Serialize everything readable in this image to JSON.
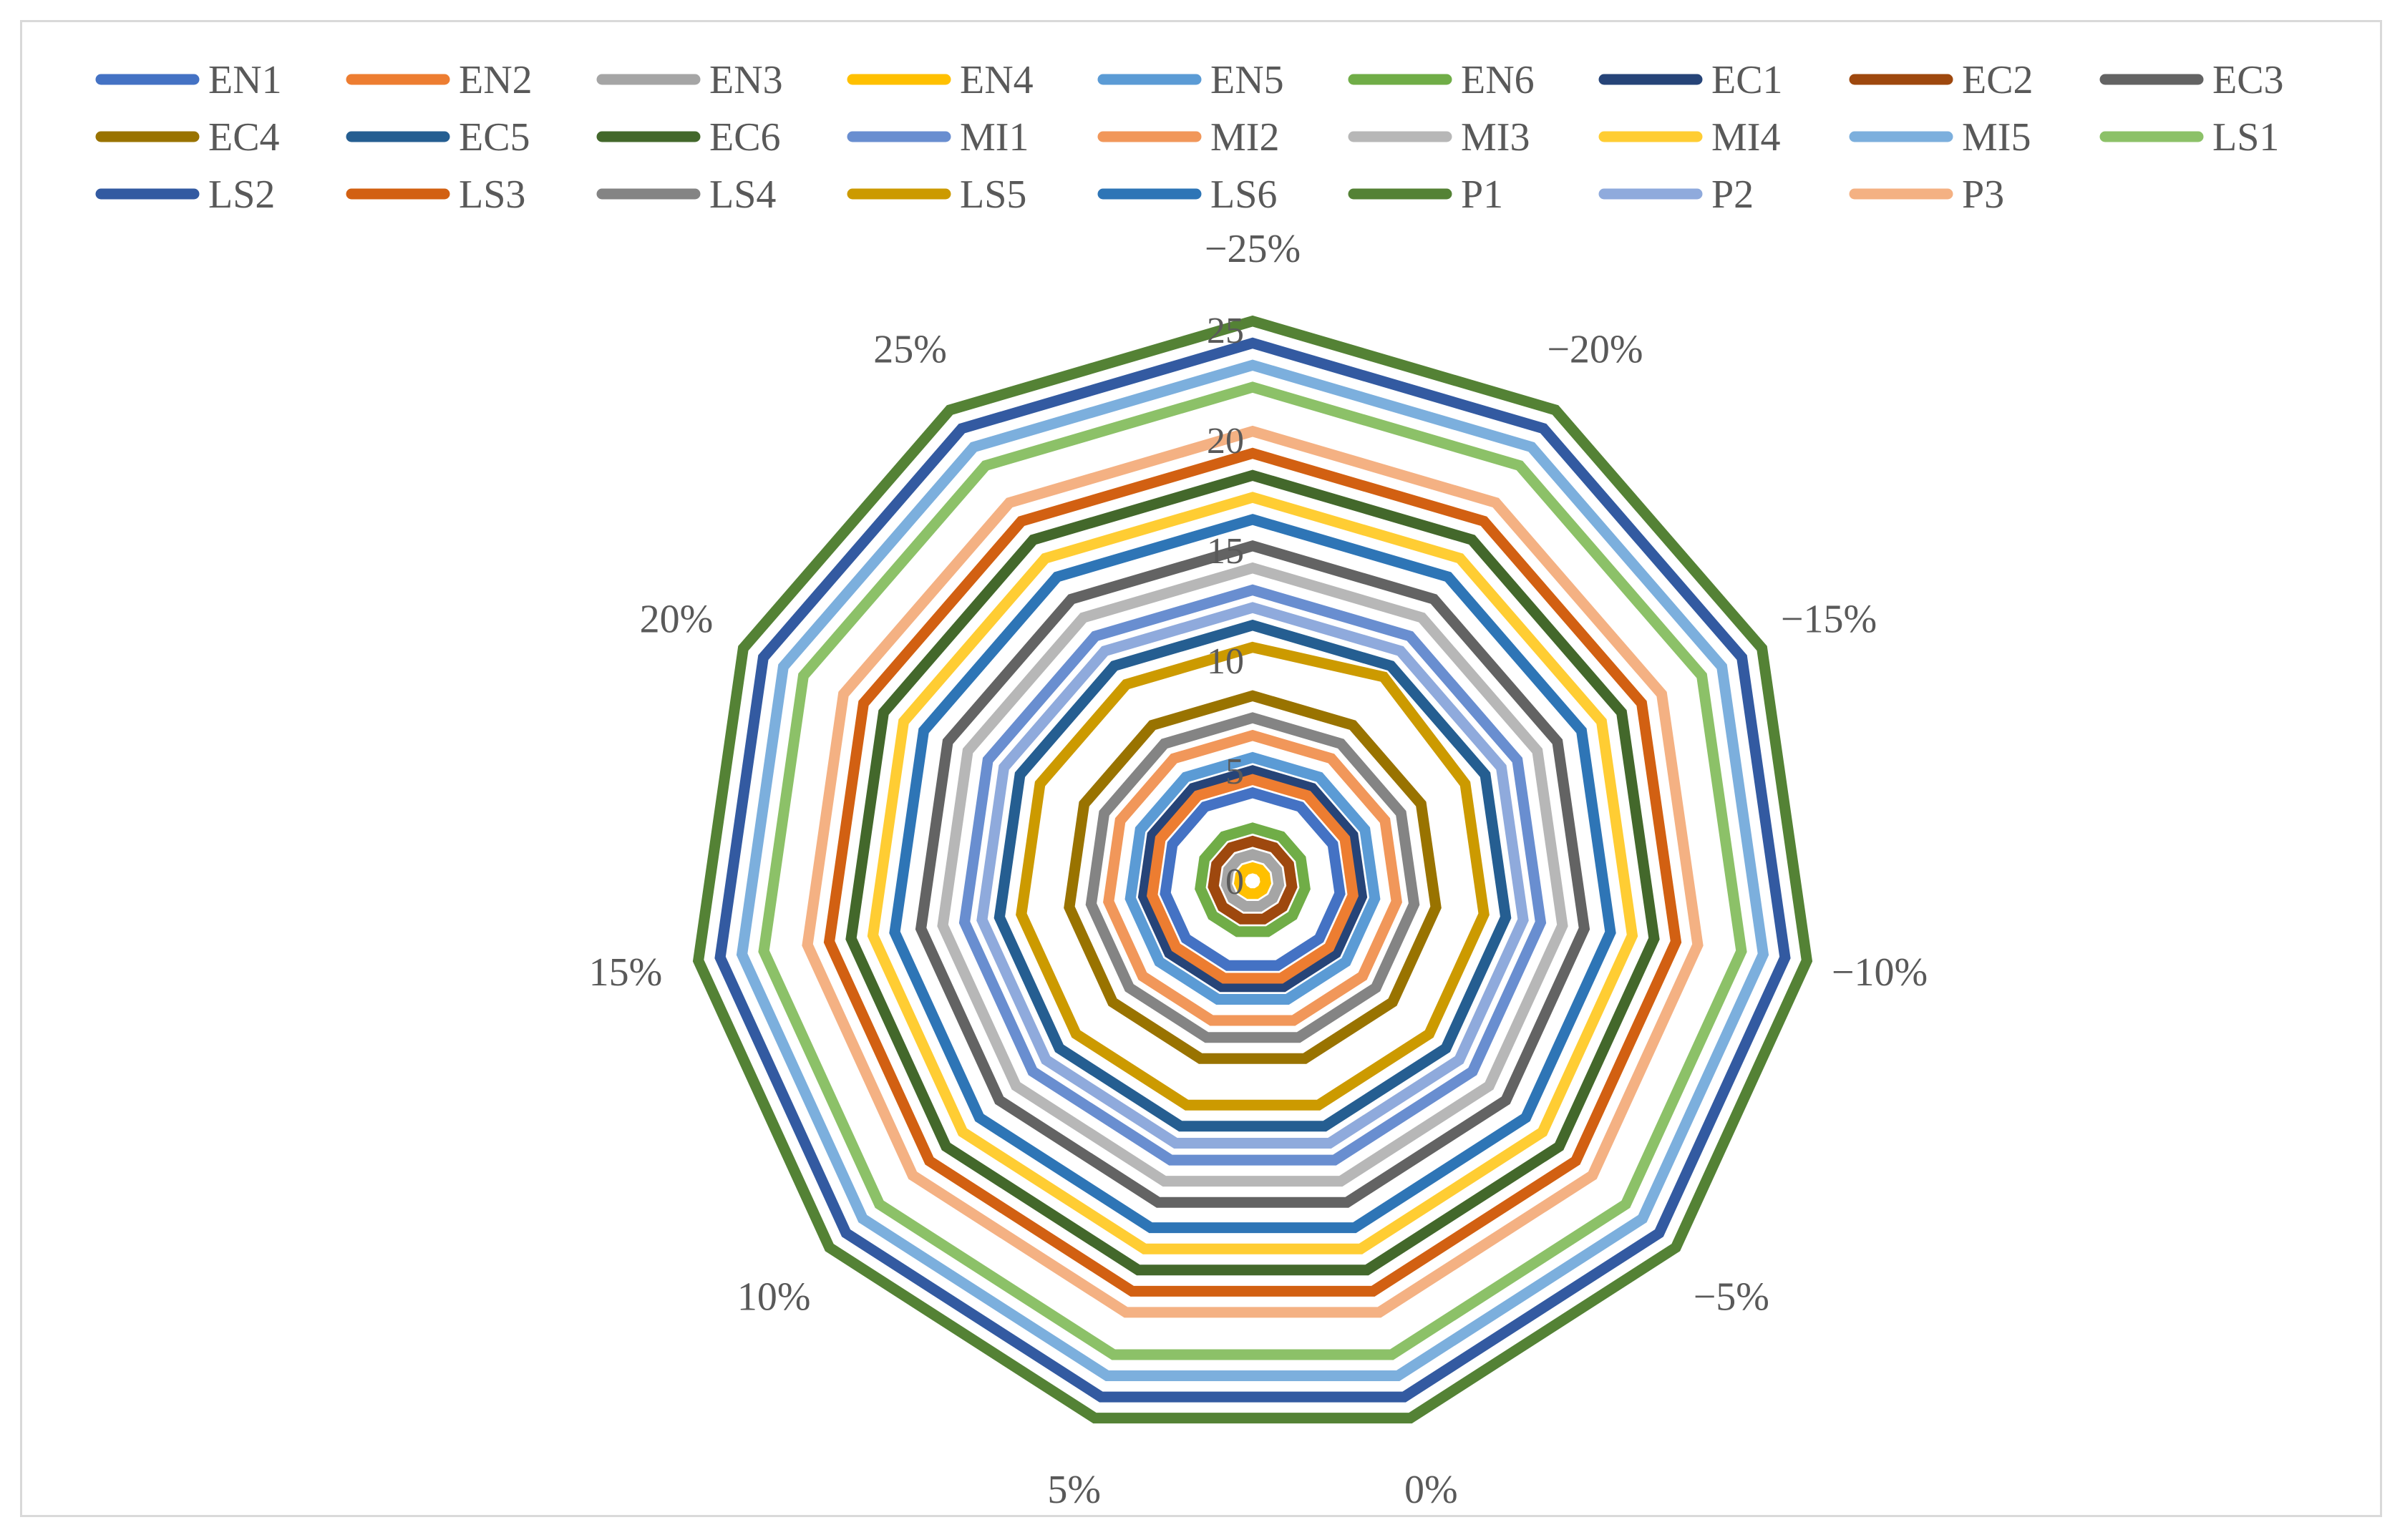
{
  "chart_data": {
    "type": "radar",
    "categories": [
      "-25%",
      "-20%",
      "-15%",
      "-10%",
      "-5%",
      "0%",
      "5%",
      "10%",
      "15%",
      "20%",
      "25%"
    ],
    "category_labels": [
      "−25%",
      "−20%",
      "−15%",
      "−10%",
      "−5%",
      "0%",
      "5%",
      "10%",
      "15%",
      "20%",
      "25%"
    ],
    "radial_ticks": [
      0,
      5,
      10,
      15,
      20,
      25
    ],
    "rlim": [
      0,
      25
    ],
    "legend_position": "top",
    "series": [
      {
        "name": "EN1",
        "color": "#4472C4",
        "values": [
          4,
          4,
          4,
          4,
          4,
          4,
          4,
          4,
          4,
          4,
          4
        ]
      },
      {
        "name": "EN2",
        "color": "#ED7D31",
        "values": [
          4.6,
          4.6,
          4.6,
          4.6,
          4.6,
          4.6,
          4.6,
          4.6,
          4.6,
          4.6,
          4.6
        ]
      },
      {
        "name": "EN3",
        "color": "#A5A5A5",
        "values": [
          1.2,
          1.2,
          1.2,
          1.2,
          1.2,
          1.2,
          1.2,
          1.2,
          1.2,
          1.2,
          1.2
        ]
      },
      {
        "name": "EN4",
        "color": "#FFC000",
        "values": [
          0.6,
          0.6,
          0.6,
          0.6,
          0.6,
          0.6,
          0.6,
          0.6,
          0.6,
          0.6,
          0.6
        ]
      },
      {
        "name": "EN5",
        "color": "#5B9BD5",
        "values": [
          5.6,
          5.6,
          5.6,
          5.6,
          5.6,
          5.6,
          5.6,
          5.6,
          5.6,
          5.6,
          5.6
        ]
      },
      {
        "name": "EN6",
        "color": "#70AD47",
        "values": [
          2.4,
          2.4,
          2.4,
          2.4,
          2.4,
          2.4,
          2.4,
          2.4,
          2.4,
          2.4,
          2.4
        ]
      },
      {
        "name": "EC1",
        "color": "#264478",
        "values": [
          5,
          5,
          5,
          5,
          5,
          5,
          5,
          5,
          5,
          5,
          5
        ]
      },
      {
        "name": "EC2",
        "color": "#9E480E",
        "values": [
          1.8,
          1.8,
          1.8,
          1.8,
          1.8,
          1.8,
          1.8,
          1.8,
          1.8,
          1.8,
          1.8
        ]
      },
      {
        "name": "EC3",
        "color": "#636363",
        "values": [
          15.2,
          15.2,
          15.2,
          15.2,
          15.2,
          15.2,
          15.2,
          15.2,
          15.2,
          15.2,
          15.2
        ]
      },
      {
        "name": "EC4",
        "color": "#997300",
        "values": [
          8.4,
          8.4,
          8.4,
          8.4,
          8.4,
          8.4,
          8.4,
          8.4,
          8.4,
          8.4,
          8.4
        ]
      },
      {
        "name": "EC5",
        "color": "#255E91",
        "values": [
          11.6,
          11.6,
          11.6,
          11.6,
          11.6,
          11.6,
          11.6,
          11.6,
          11.6,
          11.6,
          11.6
        ]
      },
      {
        "name": "EC6",
        "color": "#43682B",
        "values": [
          18.4,
          18.4,
          18.4,
          18.4,
          18.4,
          18.4,
          18.4,
          18.4,
          18.4,
          18.4,
          18.4
        ]
      },
      {
        "name": "MI1",
        "color": "#698ED0",
        "values": [
          13.2,
          13.2,
          13.2,
          13.2,
          13.2,
          13.2,
          13.2,
          13.2,
          13.2,
          13.2,
          13.2
        ]
      },
      {
        "name": "MI2",
        "color": "#F1975A",
        "values": [
          6.6,
          6.6,
          6.6,
          6.6,
          6.6,
          6.6,
          6.6,
          6.6,
          6.6,
          6.6,
          6.6
        ]
      },
      {
        "name": "MI3",
        "color": "#B7B7B7",
        "values": [
          14.2,
          14.2,
          14.2,
          14.2,
          14.2,
          14.2,
          14.2,
          14.2,
          14.2,
          14.2,
          14.2
        ]
      },
      {
        "name": "MI4",
        "color": "#FFCD33",
        "values": [
          17.4,
          17.4,
          17.4,
          17.4,
          17.4,
          17.4,
          17.4,
          17.4,
          17.4,
          17.4,
          17.4
        ]
      },
      {
        "name": "MI5",
        "color": "#7CAFDD",
        "values": [
          23.4,
          23.4,
          23.4,
          23.4,
          23.4,
          23.4,
          23.4,
          23.4,
          23.4,
          23.4,
          23.4
        ]
      },
      {
        "name": "LS1",
        "color": "#8CC168",
        "values": [
          22.4,
          22.4,
          22.4,
          22.4,
          22.4,
          22.4,
          22.4,
          22.4,
          22.4,
          22.4,
          22.4
        ]
      },
      {
        "name": "LS2",
        "color": "#335AA1",
        "values": [
          24.4,
          24.4,
          24.4,
          24.4,
          24.4,
          24.4,
          24.4,
          24.4,
          24.4,
          24.4,
          24.4
        ]
      },
      {
        "name": "LS3",
        "color": "#D26012",
        "values": [
          19.4,
          19.4,
          19.4,
          19.4,
          19.4,
          19.4,
          19.4,
          19.4,
          19.4,
          19.4,
          19.4
        ]
      },
      {
        "name": "LS4",
        "color": "#848484",
        "values": [
          7.4,
          7.4,
          7.4,
          7.4,
          7.4,
          7.4,
          7.4,
          7.4,
          7.4,
          7.4,
          7.4
        ]
      },
      {
        "name": "LS5",
        "color": "#CC9A00",
        "values": [
          10.6,
          11,
          10.6,
          10.6,
          10.6,
          10.6,
          10.6,
          10.6,
          10.6,
          10.6,
          10.6
        ]
      },
      {
        "name": "LS6",
        "color": "#2E75B6",
        "values": [
          16.4,
          16.4,
          16.4,
          16.4,
          16.4,
          16.4,
          16.4,
          16.4,
          16.4,
          16.4,
          16.4
        ]
      },
      {
        "name": "P1",
        "color": "#548235",
        "values": [
          25.4,
          25.4,
          25.4,
          25.4,
          25.4,
          25.4,
          25.4,
          25.4,
          25.4,
          25.4,
          25.4
        ]
      },
      {
        "name": "P2",
        "color": "#8FAADC",
        "values": [
          12.4,
          12.4,
          12.4,
          12.4,
          12.4,
          12.4,
          12.4,
          12.4,
          12.4,
          12.4,
          12.4
        ]
      },
      {
        "name": "P3",
        "color": "#F4B183",
        "values": [
          20.4,
          20.4,
          20.4,
          20.4,
          20.4,
          20.4,
          20.4,
          20.4,
          20.4,
          20.4,
          20.4
        ]
      }
    ]
  }
}
